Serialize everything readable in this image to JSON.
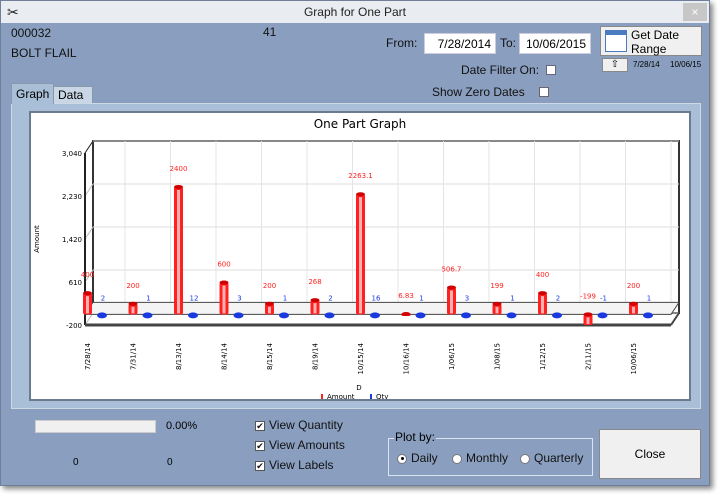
{
  "window": {
    "title": "Graph for One Part",
    "close": "×"
  },
  "part": {
    "number": "000032",
    "description": "BOLT FLAIL",
    "count": "41"
  },
  "filters": {
    "from_label": "From:",
    "from_value": "7/28/2014",
    "to_label": "To:",
    "to_value": "10/06/2015",
    "get_range_label1": "Get Date",
    "get_range_label2": "Range",
    "range_from": "7/28/14",
    "range_to": "10/06/15",
    "date_filter_label": "Date Filter On:",
    "date_filter_on": false,
    "show_zero_label": "Show Zero Dates",
    "show_zero_on": false
  },
  "tabs": [
    {
      "label": "Graph",
      "active": true
    },
    {
      "label": "Data",
      "active": false
    }
  ],
  "chart_data": {
    "type": "bar",
    "title": "One Part Graph",
    "xlabel": "D",
    "ylabel": "Amount",
    "ylim": [
      -200,
      3040
    ],
    "yticks": [
      "-200",
      "610",
      "1,420",
      "2,230",
      "3,040"
    ],
    "ytick_values": [
      -200,
      610,
      1420,
      2230,
      3040
    ],
    "categories": [
      "7/28/14",
      "7/31/14",
      "8/13/14",
      "8/14/14",
      "8/15/14",
      "8/19/14",
      "10/15/14",
      "10/16/14",
      "1/06/15",
      "1/08/15",
      "1/12/15",
      "2/11/15",
      "10/06/15"
    ],
    "series": [
      {
        "name": "Amount",
        "color": "#ff2020",
        "values": [
          400,
          200,
          2400,
          600,
          200,
          268,
          2263.1,
          6.83,
          506.7,
          199,
          400,
          -199,
          200
        ],
        "labels": [
          "400",
          "200",
          "2400",
          "600",
          "200",
          "268",
          "2263.1",
          "6.83",
          "506.7",
          "199",
          "400",
          "-199",
          "200"
        ]
      },
      {
        "name": "Qty",
        "color": "#1a3ae0",
        "values": [
          2,
          1,
          12,
          3,
          1,
          2,
          16,
          1,
          3,
          1,
          2,
          -1,
          1
        ],
        "labels": [
          "2",
          "1",
          "12",
          "3",
          "1",
          "2",
          "16",
          "1",
          "3",
          "1",
          "2",
          "-1",
          "1"
        ]
      }
    ],
    "legend": "bottom",
    "grid": true
  },
  "bottom": {
    "progress_percent": 0,
    "progress_label": "0.00%",
    "count1": "0",
    "count2": "0",
    "view_quantity": "View Quantity",
    "view_amounts": "View Amounts",
    "view_labels": "View Labels",
    "plot_by_label": "Plot by:",
    "plot_options": [
      "Daily",
      "Monthly",
      "Quarterly"
    ],
    "plot_selected": "Daily",
    "close_label": "Close"
  }
}
